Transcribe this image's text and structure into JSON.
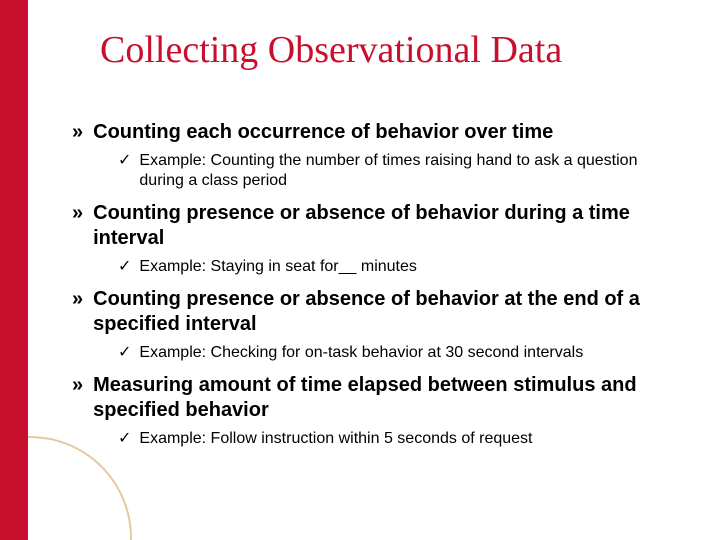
{
  "slide": {
    "title": "Collecting Observational Data",
    "title_color": "#c8102e",
    "title_fontfamily": "Times New Roman",
    "title_fontsize": 38,
    "body_fontfamily": "Arial",
    "main_fontsize": 20,
    "sub_fontsize": 16,
    "background_color": "#ffffff",
    "accent_stripe_color": "#c8102e",
    "curve_color": "#e6c9a0",
    "bullets": [
      {
        "marker": "»",
        "text": "Counting each occurrence of behavior over time",
        "sub": [
          {
            "marker": "✓",
            "text": "Example:  Counting the number of times raising hand to ask a question during a class period"
          }
        ]
      },
      {
        "marker": "»",
        "text": "Counting presence or absence of behavior during a time interval",
        "sub": [
          {
            "marker": "✓",
            "text": "Example: Staying in seat for__ minutes"
          }
        ]
      },
      {
        "marker": "»",
        "text": "Counting presence or absence of behavior at the end of a specified interval",
        "sub": [
          {
            "marker": "✓",
            "text": "Example: Checking for on-task behavior at 30 second intervals"
          }
        ]
      },
      {
        "marker": "»",
        "text": "Measuring amount of time elapsed between stimulus and specified behavior",
        "sub": [
          {
            "marker": "✓",
            "text": "Example:  Follow instruction within 5 seconds of request"
          }
        ]
      }
    ]
  }
}
